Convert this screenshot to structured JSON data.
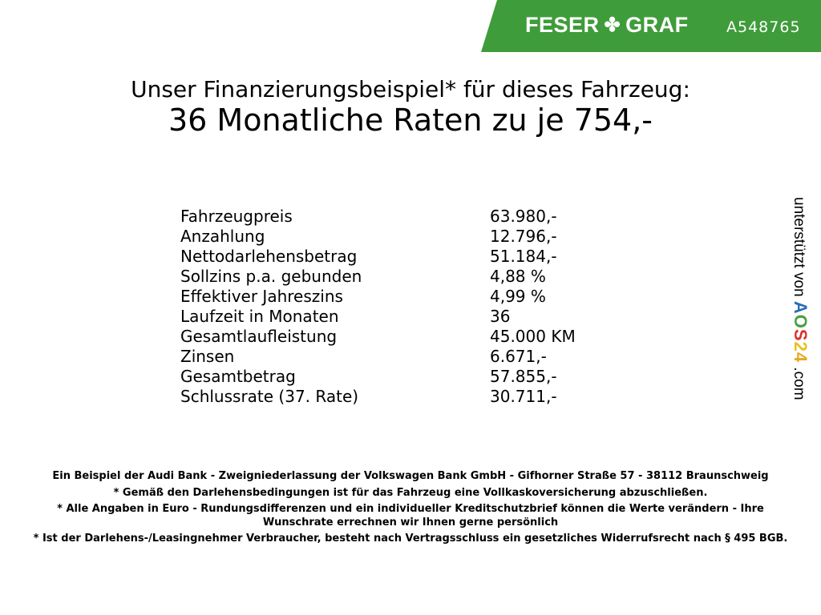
{
  "header": {
    "brand": "FESER",
    "brand2": "GRAF",
    "clover_icon": "clover-icon",
    "code": "A548765",
    "brand_color": "#3f9c3a"
  },
  "title": {
    "line1": "Unser Finanzierungsbeispiel* für dieses Fahrzeug:",
    "line2": "36 Monatliche Raten zu je 754,-"
  },
  "rows": [
    {
      "label": "Fahrzeugpreis",
      "value": "63.980,-"
    },
    {
      "label": "Anzahlung",
      "value": "12.796,-"
    },
    {
      "label": "Nettodarlehensbetrag",
      "value": "51.184,-"
    },
    {
      "label": "Sollzins p.a. gebunden",
      "value": "4,88 %"
    },
    {
      "label": "Effektiver Jahreszins",
      "value": "4,99 %"
    },
    {
      "label": "Laufzeit in Monaten",
      "value": "36"
    },
    {
      "label": "Gesamtlaufleistung",
      "value": "45.000 KM"
    },
    {
      "label": "Zinsen",
      "value": "6.671,-"
    },
    {
      "label": "Gesamtbetrag",
      "value": "57.855,-"
    },
    {
      "label": "Schlussrate (37. Rate)",
      "value": "30.711,-"
    }
  ],
  "side": {
    "text": "unterstützt von",
    "logo": [
      "A",
      "O",
      "S",
      "2",
      "4"
    ],
    "suffix": ".com"
  },
  "footer": [
    "Ein Beispiel der Audi Bank - Zweigniederlassung der Volkswagen Bank GmbH - Gifhorner Straße 57 - 38112 Braunschweig",
    "* Gemäß den Darlehensbedingungen ist für das Fahrzeug eine Vollkaskoversicherung abzuschließen.",
    "* Alle Angaben in Euro - Rundungsdifferenzen und ein individueller Kreditschutzbrief können die Werte verändern - Ihre Wunschrate errechnen wir Ihnen gerne persönlich",
    "* Ist der Darlehens-/Leasingnehmer Verbraucher, besteht nach Vertragsschluss ein gesetzliches Widerrufsrecht nach § 495 BGB."
  ]
}
